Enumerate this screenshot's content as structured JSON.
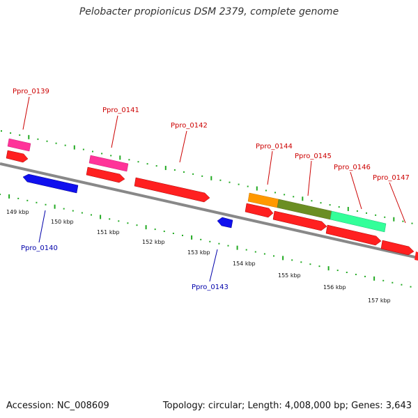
{
  "title": "Pelobacter propionicus DSM 2379, complete genome",
  "footer": {
    "accession": "Accession: NC_008609",
    "summary": "Topology: circular; Length: 4,008,000 bp; Genes: 3,643"
  },
  "colors": {
    "backbone": "#888888",
    "cds_forward": "#ff2020",
    "cds_reverse": "#1010ee",
    "pink": "#ff3399",
    "orange": "#ff9900",
    "olive": "#6b8e23",
    "aqua": "#33ff99",
    "tick": "#22aa22"
  },
  "tick_labels": [
    "149 kbp",
    "150 kbp",
    "151 kbp",
    "152 kbp",
    "153 kbp",
    "154 kbp",
    "155 kbp",
    "156 kbp",
    "157 kbp"
  ],
  "gene_labels": [
    {
      "text": "Ppro_0139",
      "strand": "forward"
    },
    {
      "text": "Ppro_0140",
      "strand": "reverse"
    },
    {
      "text": "Ppro_0141",
      "strand": "forward"
    },
    {
      "text": "Ppro_0142",
      "strand": "forward"
    },
    {
      "text": "Ppro_0143",
      "strand": "reverse"
    },
    {
      "text": "Ppro_0144",
      "strand": "forward"
    },
    {
      "text": "Ppro_0145",
      "strand": "forward"
    },
    {
      "text": "Ppro_0146",
      "strand": "forward"
    },
    {
      "text": "Ppro_0147",
      "strand": "forward"
    }
  ]
}
